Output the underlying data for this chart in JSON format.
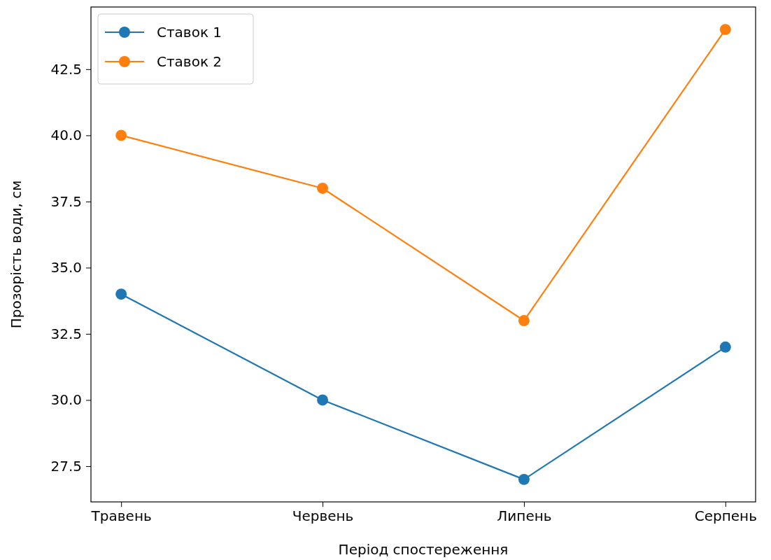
{
  "chart_data": {
    "type": "line",
    "xlabel": "Період спостереження",
    "ylabel": "Прозорість води, см",
    "categories": [
      "Травень",
      "Червень",
      "Липень",
      "Серпень"
    ],
    "series": [
      {
        "name": "Ставок 1",
        "color": "#1f77b4",
        "values": [
          34,
          30,
          27,
          32
        ]
      },
      {
        "name": "Ставок 2",
        "color": "#ff7f0e",
        "values": [
          40,
          38,
          33,
          44
        ]
      }
    ],
    "ylim": [
      26.15,
      44.85
    ],
    "yticks": [
      {
        "value": 27.5,
        "label": "27.5"
      },
      {
        "value": 30,
        "label": "30.0"
      },
      {
        "value": 32.5,
        "label": "32.5"
      },
      {
        "value": 35,
        "label": "35.0"
      },
      {
        "value": 37.5,
        "label": "37.5"
      },
      {
        "value": 40,
        "label": "40.0"
      },
      {
        "value": 42.5,
        "label": "42.5"
      }
    ],
    "grid": false,
    "legend": "top left",
    "marker": "circle",
    "line_style": "solid"
  }
}
